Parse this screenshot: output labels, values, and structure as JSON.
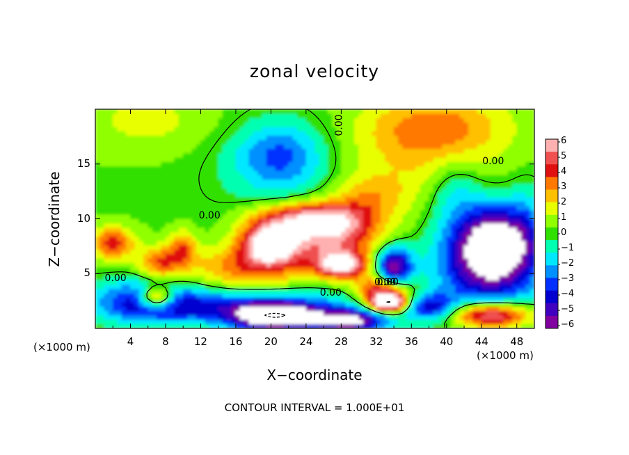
{
  "chart_data": {
    "type": "heatmap",
    "title": "zonal velocity",
    "xlabel": "X−coordinate",
    "ylabel": "Z−coordinate",
    "x_unit_left": "(×1000 m)",
    "x_unit_right": "(×1000 m)",
    "footer": "CONTOUR INTERVAL = 1.000E+01",
    "xlim": [
      0,
      50
    ],
    "ylim": [
      0,
      20
    ],
    "x_ticks": [
      "4",
      "8",
      "12",
      "16",
      "20",
      "24",
      "28",
      "32",
      "36",
      "40",
      "44",
      "48"
    ],
    "y_ticks": [
      "5",
      "10",
      "15"
    ],
    "colorbar": {
      "ticks": [
        "6",
        "5",
        "4",
        "3",
        "2",
        "1",
        "0",
        "−1",
        "−2",
        "−3",
        "−4",
        "−5",
        "−6"
      ],
      "colors": [
        "#ffb0b0",
        "#f05050",
        "#e01010",
        "#ff7800",
        "#ffc000",
        "#e8ff00",
        "#90ff00",
        "#30e000",
        "#00ffb0",
        "#00e8ff",
        "#0090ff",
        "#0030ff",
        "#0000d0",
        "#4000c0",
        "#8000a0"
      ]
    },
    "contour_labels": [
      "0.00",
      "0.00",
      "0.00",
      "0.00",
      "0.00",
      "0.00",
      "0.00"
    ],
    "field_blobs": [
      {
        "x": 21,
        "z": 15.8,
        "rx": 5.0,
        "rz": 3.0,
        "v": -3.0
      },
      {
        "x": 22,
        "z": 14,
        "rx": 9.0,
        "rz": 5.0,
        "v": -1.0
      },
      {
        "x": 39,
        "z": 18.5,
        "rx": 8.0,
        "rz": 3.0,
        "v": 2.6
      },
      {
        "x": 36,
        "z": 15,
        "rx": 10.0,
        "rz": 5.0,
        "v": 1.6
      },
      {
        "x": 31,
        "z": 12,
        "rx": 4.0,
        "rz": 2.0,
        "v": 2.0
      },
      {
        "x": 6,
        "z": 19,
        "rx": 8.0,
        "rz": 3.0,
        "v": 1.3
      },
      {
        "x": 20,
        "z": 7.8,
        "rx": 3.5,
        "rz": 2.0,
        "v": 7.5
      },
      {
        "x": 27,
        "z": 8.5,
        "rx": 5.0,
        "rz": 2.2,
        "v": 5.5
      },
      {
        "x": 24.5,
        "z": 10.2,
        "rx": 6.0,
        "rz": 1.4,
        "v": 4.5
      },
      {
        "x": 28,
        "z": 5.8,
        "rx": 3.0,
        "rz": 1.2,
        "v": 6.5
      },
      {
        "x": 33,
        "z": 3.4,
        "rx": 3.0,
        "rz": 1.5,
        "v": 6.0
      },
      {
        "x": 17,
        "z": 5.5,
        "rx": 7.0,
        "rz": 2.0,
        "v": 3.0
      },
      {
        "x": 2,
        "z": 7.8,
        "rx": 2.5,
        "rz": 1.5,
        "v": 4.0
      },
      {
        "x": 7.5,
        "z": 6,
        "rx": 2.5,
        "rz": 1.5,
        "v": 3.5
      },
      {
        "x": 10,
        "z": 7.5,
        "rx": 1.5,
        "rz": 1.5,
        "v": 3.0
      },
      {
        "x": 45.5,
        "z": 7.5,
        "rx": 4.5,
        "rz": 3.5,
        "v": -8.0
      },
      {
        "x": 44,
        "z": 5,
        "rx": 7.0,
        "rz": 5.0,
        "v": -3.0
      },
      {
        "x": 34,
        "z": 5.5,
        "rx": 2.0,
        "rz": 1.8,
        "v": -7.0
      },
      {
        "x": 6,
        "z": 2.5,
        "rx": 6.0,
        "rz": 2.0,
        "v": -4.5
      },
      {
        "x": 18,
        "z": 2,
        "rx": 12.0,
        "rz": 1.5,
        "v": -4.0
      },
      {
        "x": 20.5,
        "z": 1,
        "rx": 5.0,
        "rz": 1.2,
        "v": -8.0
      },
      {
        "x": 29,
        "z": 0.7,
        "rx": 4.0,
        "rz": 1.0,
        "v": -7.0
      },
      {
        "x": 45,
        "z": 1.2,
        "rx": 4.5,
        "rz": 1.2,
        "v": 7.0
      },
      {
        "x": 38,
        "z": 2,
        "rx": 3.0,
        "rz": 1.2,
        "v": -4.0
      },
      {
        "x": 33.5,
        "z": 2.3,
        "rx": 2.0,
        "rz": 0.8,
        "v": 8.0
      },
      {
        "x": 7,
        "z": 2.8,
        "rx": 2.0,
        "rz": 1.0,
        "v": 7.0
      },
      {
        "x": 41,
        "z": 12.5,
        "rx": 3.0,
        "rz": 3.0,
        "v": -2.0
      },
      {
        "x": 49,
        "z": 10,
        "rx": 2.0,
        "rz": 4.0,
        "v": -1.2
      }
    ],
    "field_base": 0.3
  }
}
